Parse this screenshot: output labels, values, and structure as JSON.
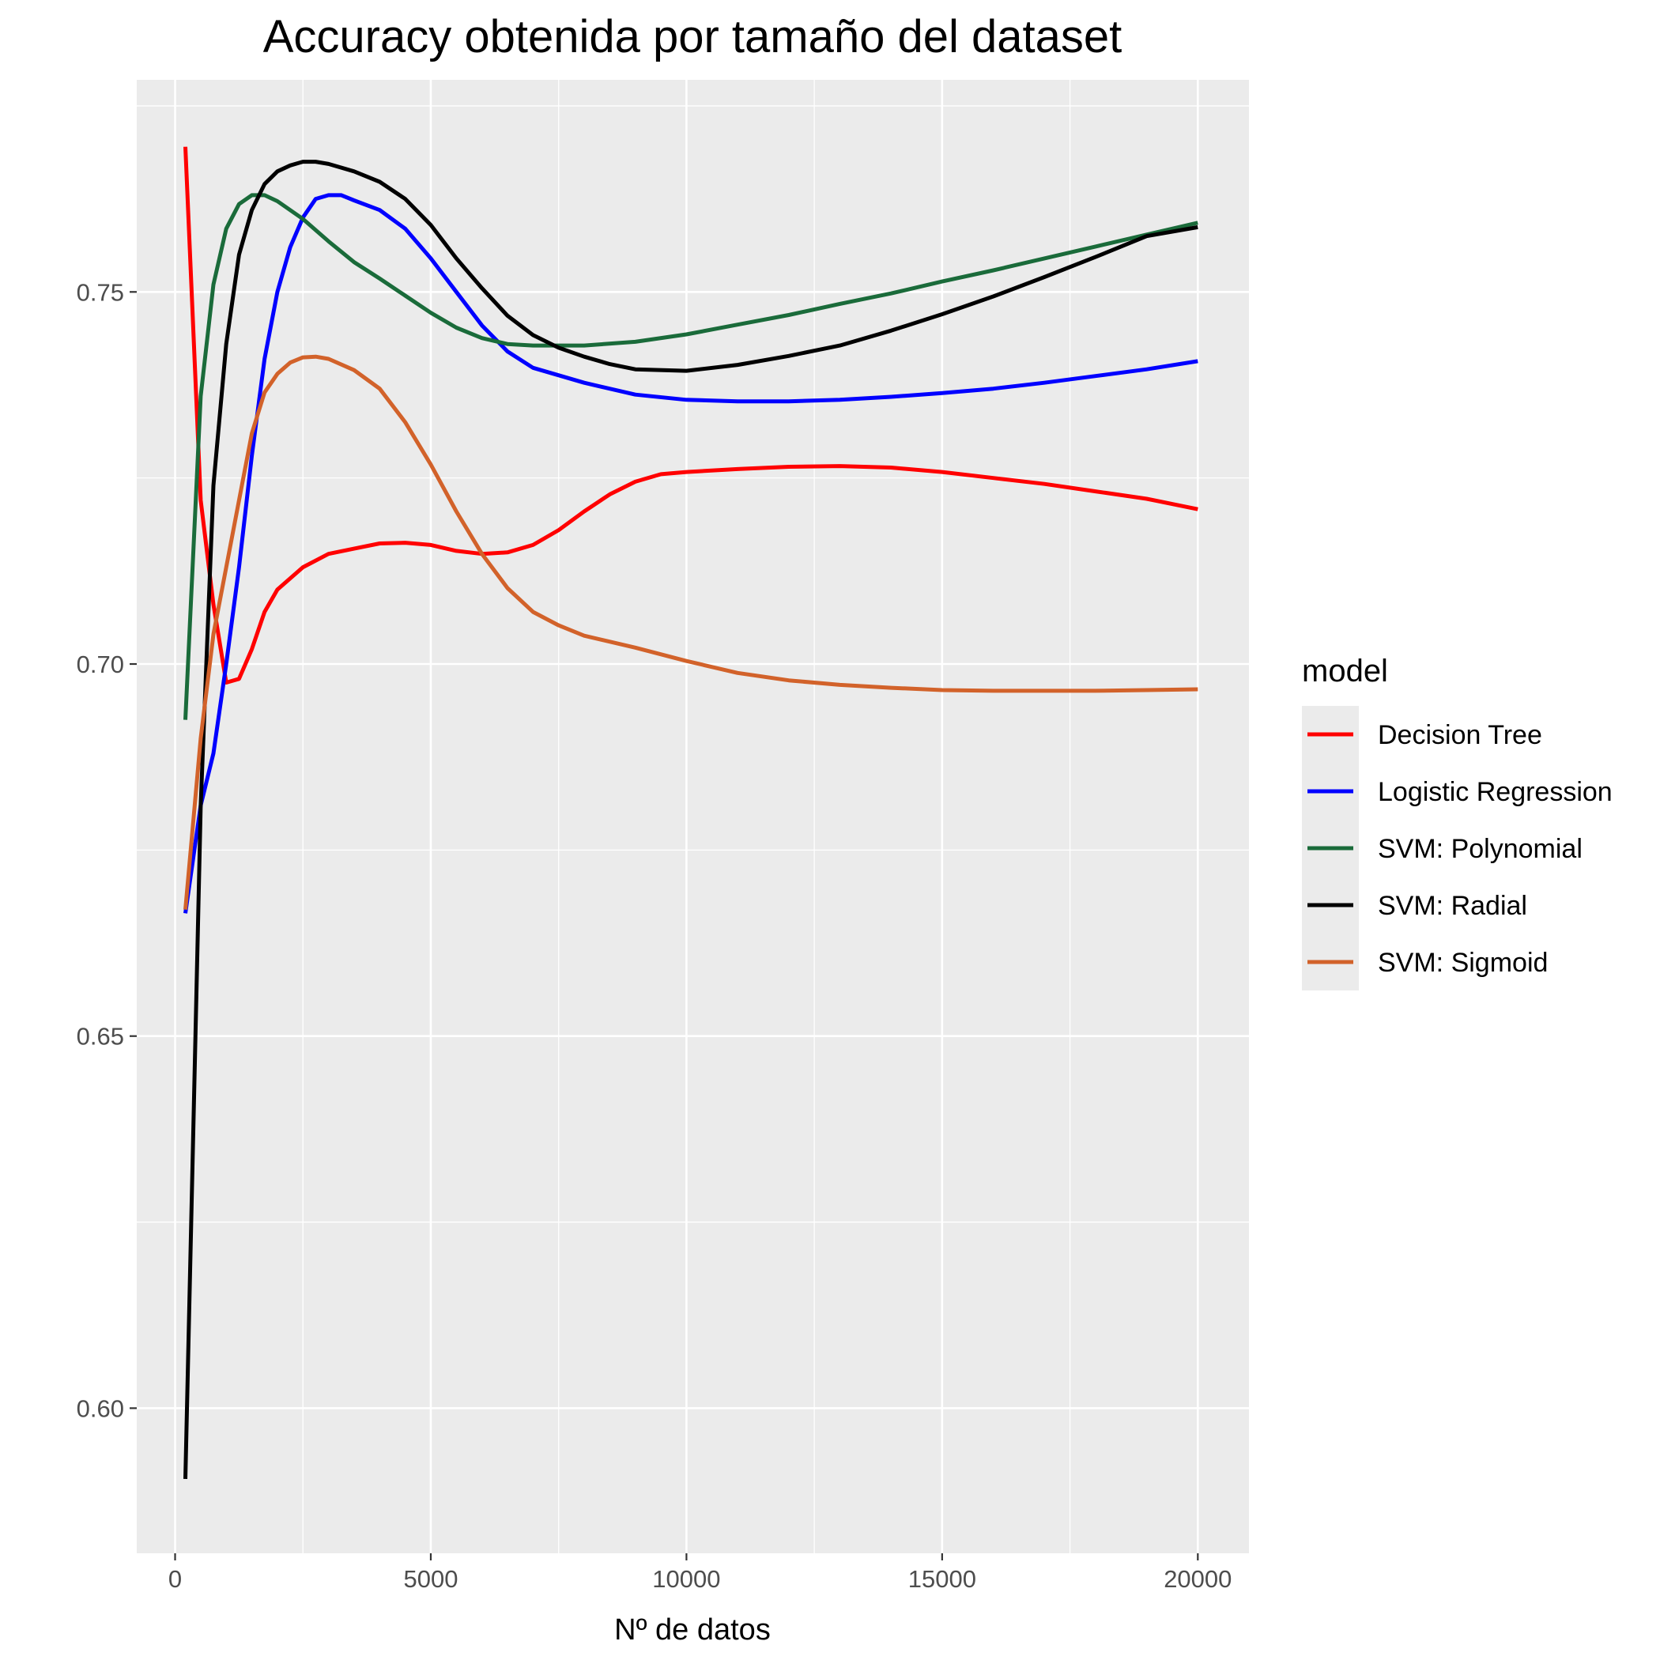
{
  "chart_data": {
    "type": "line",
    "title": "Accuracy obtenida por tamaño del dataset",
    "xlabel": "Nº de datos",
    "ylabel": "",
    "xlim": [
      -750,
      21000
    ],
    "ylim": [
      0.5805,
      0.7785
    ],
    "x_ticks": [
      0,
      5000,
      10000,
      15000,
      20000
    ],
    "x_tick_labels": [
      "0",
      "5000",
      "10000",
      "15000",
      "20000"
    ],
    "y_ticks": [
      0.6,
      0.65,
      0.7,
      0.75
    ],
    "y_tick_labels": [
      "0.60",
      "0.65",
      "0.70",
      "0.75"
    ],
    "grid": true,
    "background": "#ebebeb",
    "legend": {
      "title": "model",
      "position": "right"
    },
    "series": [
      {
        "name": "Decision Tree",
        "color": "#ff0000",
        "points": [
          [
            200,
            0.7695
          ],
          [
            500,
            0.722
          ],
          [
            750,
            0.708
          ],
          [
            1000,
            0.6975
          ],
          [
            1250,
            0.698
          ],
          [
            1500,
            0.702
          ],
          [
            1750,
            0.707
          ],
          [
            2000,
            0.71
          ],
          [
            2500,
            0.713
          ],
          [
            3000,
            0.7148
          ],
          [
            3500,
            0.7155
          ],
          [
            4000,
            0.7162
          ],
          [
            4500,
            0.7163
          ],
          [
            5000,
            0.716
          ],
          [
            5500,
            0.7152
          ],
          [
            6000,
            0.7148
          ],
          [
            6500,
            0.715
          ],
          [
            7000,
            0.716
          ],
          [
            7500,
            0.718
          ],
          [
            8000,
            0.7205
          ],
          [
            8500,
            0.7228
          ],
          [
            9000,
            0.7245
          ],
          [
            9500,
            0.7255
          ],
          [
            10000,
            0.7258
          ],
          [
            11000,
            0.7262
          ],
          [
            12000,
            0.7265
          ],
          [
            13000,
            0.7266
          ],
          [
            14000,
            0.7264
          ],
          [
            15000,
            0.7258
          ],
          [
            16000,
            0.725
          ],
          [
            17000,
            0.7242
          ],
          [
            18000,
            0.7232
          ],
          [
            19000,
            0.7222
          ],
          [
            20000,
            0.7208
          ]
        ]
      },
      {
        "name": "Logistic Regression",
        "color": "#0000ff",
        "points": [
          [
            200,
            0.6665
          ],
          [
            500,
            0.681
          ],
          [
            750,
            0.688
          ],
          [
            1000,
            0.7
          ],
          [
            1250,
            0.713
          ],
          [
            1500,
            0.728
          ],
          [
            1750,
            0.741
          ],
          [
            2000,
            0.75
          ],
          [
            2250,
            0.756
          ],
          [
            2500,
            0.76
          ],
          [
            2750,
            0.7625
          ],
          [
            3000,
            0.763
          ],
          [
            3250,
            0.763
          ],
          [
            3500,
            0.7623
          ],
          [
            4000,
            0.761
          ],
          [
            4500,
            0.7585
          ],
          [
            5000,
            0.7545
          ],
          [
            5500,
            0.75
          ],
          [
            6000,
            0.7455
          ],
          [
            6500,
            0.742
          ],
          [
            7000,
            0.7398
          ],
          [
            8000,
            0.7378
          ],
          [
            9000,
            0.7362
          ],
          [
            10000,
            0.7355
          ],
          [
            11000,
            0.7353
          ],
          [
            12000,
            0.7353
          ],
          [
            13000,
            0.7355
          ],
          [
            14000,
            0.7359
          ],
          [
            15000,
            0.7364
          ],
          [
            16000,
            0.737
          ],
          [
            17000,
            0.7378
          ],
          [
            18000,
            0.7387
          ],
          [
            19000,
            0.7396
          ],
          [
            20000,
            0.7407
          ]
        ]
      },
      {
        "name": "SVM: Polynomial",
        "color": "#1a6b3a",
        "points": [
          [
            200,
            0.6925
          ],
          [
            500,
            0.736
          ],
          [
            750,
            0.751
          ],
          [
            1000,
            0.7585
          ],
          [
            1250,
            0.7618
          ],
          [
            1500,
            0.763
          ],
          [
            1750,
            0.763
          ],
          [
            2000,
            0.7622
          ],
          [
            2500,
            0.7598
          ],
          [
            3000,
            0.7568
          ],
          [
            3500,
            0.754
          ],
          [
            4000,
            0.7518
          ],
          [
            4500,
            0.7495
          ],
          [
            5000,
            0.7472
          ],
          [
            5500,
            0.7452
          ],
          [
            6000,
            0.7438
          ],
          [
            6500,
            0.743
          ],
          [
            7000,
            0.7428
          ],
          [
            8000,
            0.7428
          ],
          [
            9000,
            0.7433
          ],
          [
            10000,
            0.7443
          ],
          [
            11000,
            0.7456
          ],
          [
            12000,
            0.7469
          ],
          [
            13000,
            0.7484
          ],
          [
            14000,
            0.7498
          ],
          [
            15000,
            0.7514
          ],
          [
            16000,
            0.7529
          ],
          [
            17000,
            0.7545
          ],
          [
            18000,
            0.7561
          ],
          [
            19000,
            0.7577
          ],
          [
            20000,
            0.7593
          ]
        ]
      },
      {
        "name": "SVM: Radial",
        "color": "#000000",
        "points": [
          [
            200,
            0.5905
          ],
          [
            500,
            0.681
          ],
          [
            750,
            0.724
          ],
          [
            1000,
            0.743
          ],
          [
            1250,
            0.755
          ],
          [
            1500,
            0.761
          ],
          [
            1750,
            0.7645
          ],
          [
            2000,
            0.7662
          ],
          [
            2250,
            0.767
          ],
          [
            2500,
            0.7675
          ],
          [
            2750,
            0.7675
          ],
          [
            3000,
            0.7672
          ],
          [
            3500,
            0.7662
          ],
          [
            4000,
            0.7648
          ],
          [
            4500,
            0.7625
          ],
          [
            5000,
            0.759
          ],
          [
            5500,
            0.7545
          ],
          [
            6000,
            0.7505
          ],
          [
            6500,
            0.7468
          ],
          [
            7000,
            0.7442
          ],
          [
            7500,
            0.7425
          ],
          [
            8000,
            0.7413
          ],
          [
            8500,
            0.7403
          ],
          [
            9000,
            0.7396
          ],
          [
            10000,
            0.7394
          ],
          [
            11000,
            0.7402
          ],
          [
            12000,
            0.7414
          ],
          [
            13000,
            0.7428
          ],
          [
            14000,
            0.7448
          ],
          [
            15000,
            0.747
          ],
          [
            16000,
            0.7494
          ],
          [
            17000,
            0.752
          ],
          [
            18000,
            0.7547
          ],
          [
            19000,
            0.7575
          ],
          [
            20000,
            0.7587
          ]
        ]
      },
      {
        "name": "SVM: Sigmoid",
        "color": "#d2622a",
        "points": [
          [
            200,
            0.667
          ],
          [
            500,
            0.69
          ],
          [
            750,
            0.704
          ],
          [
            1000,
            0.713
          ],
          [
            1250,
            0.722
          ],
          [
            1500,
            0.731
          ],
          [
            1750,
            0.7365
          ],
          [
            2000,
            0.739
          ],
          [
            2250,
            0.7405
          ],
          [
            2500,
            0.7412
          ],
          [
            2750,
            0.7413
          ],
          [
            3000,
            0.741
          ],
          [
            3500,
            0.7395
          ],
          [
            4000,
            0.737
          ],
          [
            4500,
            0.7325
          ],
          [
            5000,
            0.7268
          ],
          [
            5500,
            0.7205
          ],
          [
            6000,
            0.7148
          ],
          [
            6500,
            0.7102
          ],
          [
            7000,
            0.707
          ],
          [
            7500,
            0.7052
          ],
          [
            8000,
            0.7038
          ],
          [
            9000,
            0.7022
          ],
          [
            10000,
            0.7004
          ],
          [
            11000,
            0.6988
          ],
          [
            12000,
            0.6978
          ],
          [
            13000,
            0.6972
          ],
          [
            14000,
            0.6968
          ],
          [
            15000,
            0.6965
          ],
          [
            16000,
            0.6964
          ],
          [
            17000,
            0.6964
          ],
          [
            18000,
            0.6964
          ],
          [
            19000,
            0.6965
          ],
          [
            20000,
            0.6966
          ]
        ]
      }
    ]
  }
}
